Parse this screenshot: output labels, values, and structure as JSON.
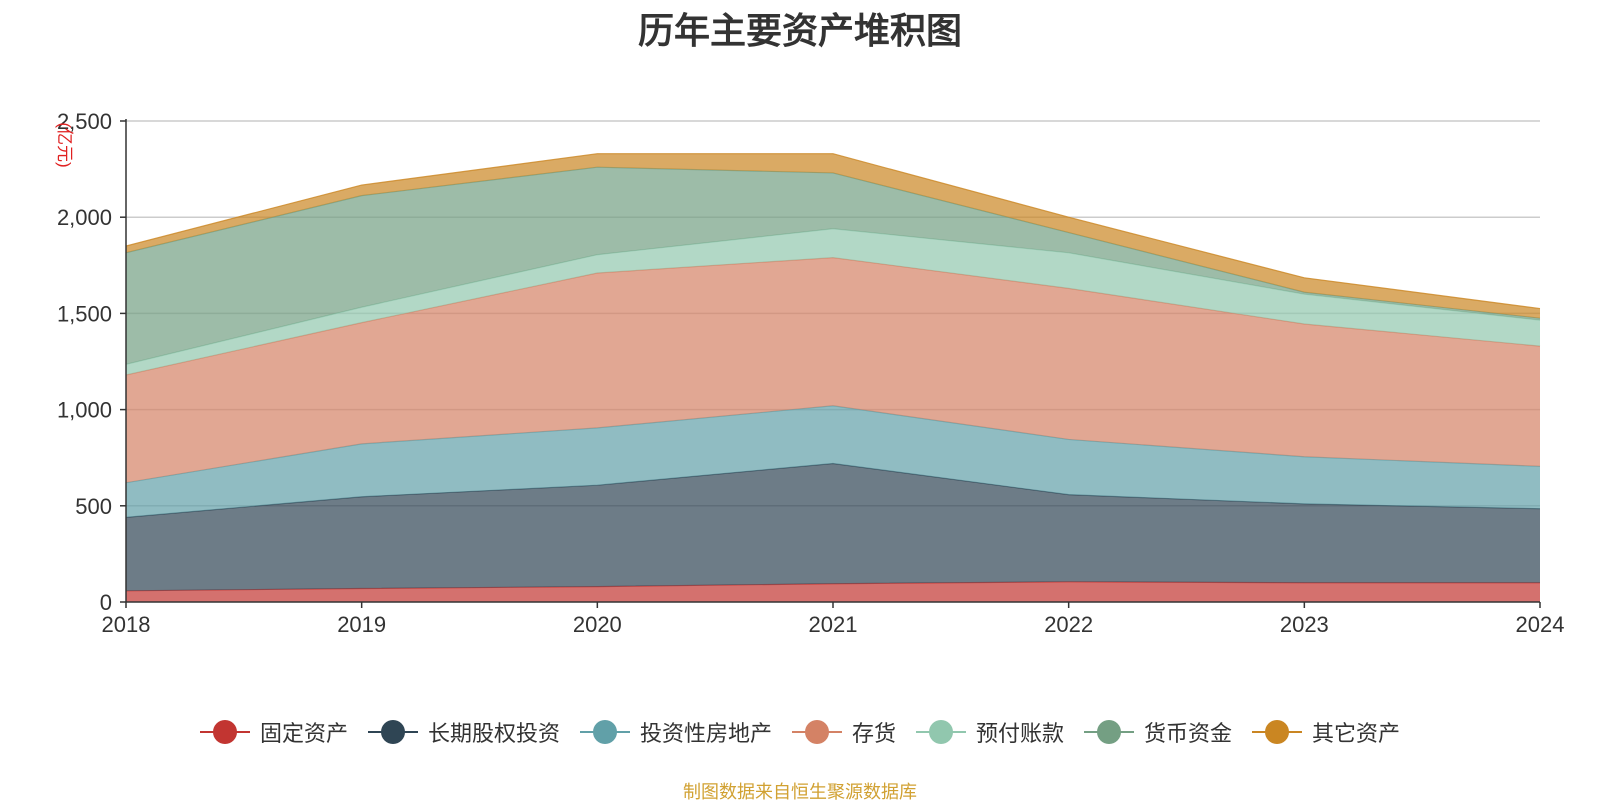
{
  "chart_data": {
    "type": "area",
    "stacked": true,
    "title": "历年主要资产堆积图",
    "ylabel": "亿元",
    "x": [
      "2018",
      "2019",
      "2020",
      "2021",
      "2022",
      "2023",
      "2024"
    ],
    "ylim": [
      0,
      2500
    ],
    "yticks": [
      "0",
      "500",
      "1,000",
      "1,500",
      "2,000",
      "2,500"
    ],
    "grid": true,
    "legend_position": "bottom",
    "series": [
      {
        "name": "固定资产",
        "color": "#c23531",
        "values": [
          58,
          70,
          80,
          95,
          105,
          100,
          100
        ]
      },
      {
        "name": "长期股权投资",
        "color": "#2f4554",
        "values": [
          382,
          477,
          527,
          625,
          453,
          410,
          385
        ]
      },
      {
        "name": "投资性房地产",
        "color": "#61a0a8",
        "values": [
          180,
          275,
          298,
          300,
          287,
          245,
          220
        ]
      },
      {
        "name": "存货",
        "color": "#d48265",
        "values": [
          560,
          630,
          805,
          770,
          785,
          690,
          625
        ]
      },
      {
        "name": "预付账款",
        "color": "#91c7ae",
        "values": [
          55,
          80,
          95,
          150,
          185,
          155,
          135
        ]
      },
      {
        "name": "货币资金",
        "color": "#749f83",
        "values": [
          580,
          580,
          455,
          290,
          105,
          10,
          10
        ]
      },
      {
        "name": "其它资产",
        "color": "#ca8622",
        "values": [
          35,
          55,
          70,
          100,
          80,
          75,
          50
        ]
      }
    ]
  },
  "footer": {
    "source": "制图数据来自恒生聚源数据库"
  }
}
